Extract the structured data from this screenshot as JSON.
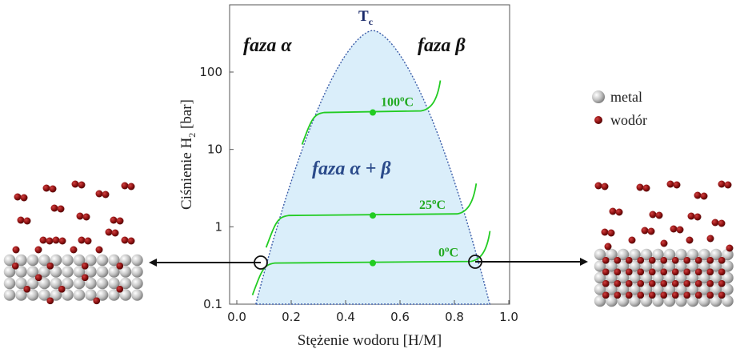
{
  "diagram": {
    "tc_label": "T",
    "tc_sub": "c",
    "phase_alpha": "faza α",
    "phase_beta": "faza β",
    "phase_alpha_beta": "faza α + β",
    "x_axis_label": "Stężenie wodoru [H/M]",
    "y_axis_label_prefix": "Ciśnienie H",
    "y_axis_label_sub": "2",
    "y_axis_label_suffix": " [bar]",
    "x_ticks": [
      "0.0",
      "0.2",
      "0.4",
      "0.6",
      "0.8",
      "1.0"
    ],
    "y_ticks": [
      "0.1",
      "1",
      "10",
      "100"
    ],
    "isotherms": [
      {
        "label_num": "100",
        "label_deg": "o",
        "label_unit": "C",
        "plateau_bar": 30
      },
      {
        "label_num": "25",
        "label_deg": "o",
        "label_unit": "C",
        "plateau_bar": 1.4
      },
      {
        "label_num": "0",
        "label_deg": "o",
        "label_unit": "C",
        "plateau_bar": 0.34
      }
    ]
  },
  "legend": {
    "metal_label": "metal",
    "hydrogen_label": "wodór"
  },
  "colors": {
    "dome_fill": "#daeefa",
    "dome_edge": "#3a5ca8",
    "isotherm": "#22cc22",
    "isotherm_label": "#22aa22",
    "metal": "#b8b8b8",
    "hydrogen": "#8b1010",
    "phase_ab_text": "#2a4a8a"
  }
}
